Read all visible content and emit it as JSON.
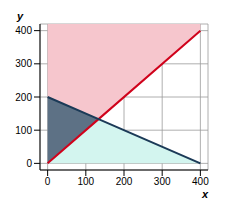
{
  "chart_data": {
    "type": "inequality",
    "x_label": "x",
    "y_label": "y",
    "xlim": [
      -20,
      420
    ],
    "ylim": [
      -20,
      420
    ],
    "xticks": [
      0,
      100,
      200,
      300,
      400
    ],
    "yticks": [
      0,
      100,
      200,
      300,
      400
    ],
    "grid": true,
    "series": [
      {
        "color": "#d0021b",
        "x": [
          0,
          400
        ],
        "values": [
          0,
          400
        ]
      },
      {
        "color": "#1b3a57",
        "x": [
          0,
          400
        ],
        "values": [
          200,
          0
        ]
      }
    ]
  }
}
